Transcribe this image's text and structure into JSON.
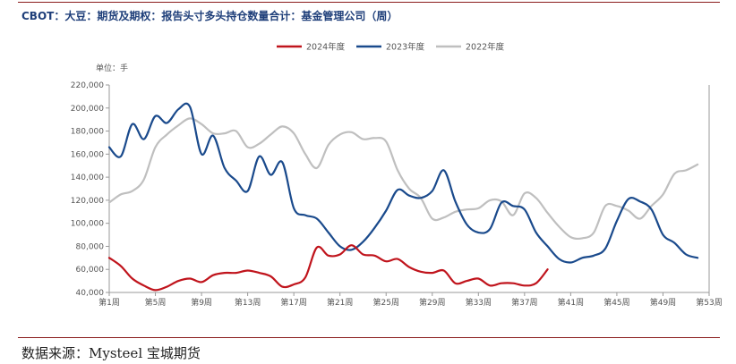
{
  "header": {
    "title": "CBOT：大豆：期货及期权：报告头寸多头持仓数量合计：基金管理公司（周）"
  },
  "footer": {
    "source": "数据来源：Mysteel   宝城期货"
  },
  "chart_data": {
    "type": "line",
    "ylabel": "单位：手",
    "ylim": [
      40000,
      220000
    ],
    "yticks": [
      40000,
      60000,
      80000,
      100000,
      120000,
      140000,
      160000,
      180000,
      200000,
      220000
    ],
    "ytick_labels": [
      "40,000",
      "60,000",
      "80,000",
      "100,000",
      "120,000",
      "140,000",
      "160,000",
      "180,000",
      "200,000",
      "220,000"
    ],
    "xlim": [
      1,
      53
    ],
    "xticks": [
      1,
      5,
      9,
      13,
      17,
      21,
      25,
      29,
      33,
      37,
      41,
      45,
      49,
      53
    ],
    "xtick_labels": [
      "第1周",
      "第5周",
      "第9周",
      "第13周",
      "第17周",
      "第21周",
      "第25周",
      "第29周",
      "第33周",
      "第37周",
      "第41周",
      "第45周",
      "第49周",
      "第53周"
    ],
    "legend_position": "top-center",
    "grid": false,
    "series": [
      {
        "name": "2024年度",
        "color": "#c0141c",
        "x": [
          1,
          2,
          3,
          4,
          5,
          6,
          7,
          8,
          9,
          10,
          11,
          12,
          13,
          14,
          15,
          16,
          17,
          18,
          19,
          20,
          21,
          22,
          23,
          24,
          25,
          26,
          27,
          28,
          29,
          30,
          31,
          32,
          33,
          34,
          35,
          36,
          37,
          38,
          39
        ],
        "values": [
          70000,
          63000,
          52000,
          46000,
          42000,
          45000,
          50000,
          52000,
          49000,
          55000,
          57000,
          57000,
          59000,
          57000,
          54000,
          45000,
          47000,
          53000,
          79000,
          72000,
          73000,
          81000,
          73000,
          72000,
          67000,
          69000,
          62000,
          58000,
          57000,
          59000,
          48000,
          50000,
          52000,
          46000,
          48000,
          48000,
          46000,
          48000,
          60000
        ]
      },
      {
        "name": "2023年度",
        "color": "#1a4a8c",
        "x": [
          1,
          2,
          3,
          4,
          5,
          6,
          7,
          8,
          9,
          10,
          11,
          12,
          13,
          14,
          15,
          16,
          17,
          18,
          19,
          20,
          21,
          22,
          23,
          24,
          25,
          26,
          27,
          28,
          29,
          30,
          31,
          32,
          33,
          34,
          35,
          36,
          37,
          38,
          39,
          40,
          41,
          42,
          43,
          44,
          45,
          46,
          47,
          48,
          49,
          50,
          51,
          52
        ],
        "values": [
          166000,
          158000,
          186000,
          173000,
          193000,
          187000,
          199000,
          201000,
          160000,
          176000,
          148000,
          137000,
          128000,
          158000,
          142000,
          153000,
          113000,
          107000,
          104000,
          92000,
          80000,
          77000,
          84000,
          96000,
          111000,
          129000,
          124000,
          122000,
          128000,
          146000,
          119000,
          99000,
          92000,
          95000,
          118000,
          115000,
          112000,
          92000,
          80000,
          69000,
          66000,
          70000,
          72000,
          78000,
          102000,
          121000,
          119000,
          112000,
          90000,
          83000,
          73000,
          70000
        ]
      },
      {
        "name": "2022年度",
        "color": "#bfbfbf",
        "x": [
          1,
          2,
          3,
          4,
          5,
          6,
          7,
          8,
          9,
          10,
          11,
          12,
          13,
          14,
          15,
          16,
          17,
          18,
          19,
          20,
          21,
          22,
          23,
          24,
          25,
          26,
          27,
          28,
          29,
          30,
          31,
          32,
          33,
          34,
          35,
          36,
          37,
          38,
          39,
          40,
          41,
          42,
          43,
          44,
          45,
          46,
          47,
          48,
          49,
          50,
          51,
          52
        ],
        "values": [
          118000,
          125000,
          128000,
          138000,
          166000,
          177000,
          185000,
          191000,
          186000,
          178000,
          178000,
          180000,
          166000,
          169000,
          177000,
          184000,
          178000,
          160000,
          148000,
          168000,
          177000,
          179000,
          173000,
          174000,
          171000,
          146000,
          130000,
          122000,
          104000,
          105000,
          110000,
          112000,
          113000,
          120000,
          119000,
          107000,
          126000,
          122000,
          109000,
          97000,
          88000,
          87000,
          92000,
          115000,
          115000,
          111000,
          104000,
          115000,
          125000,
          143000,
          146000,
          151000
        ]
      }
    ]
  }
}
